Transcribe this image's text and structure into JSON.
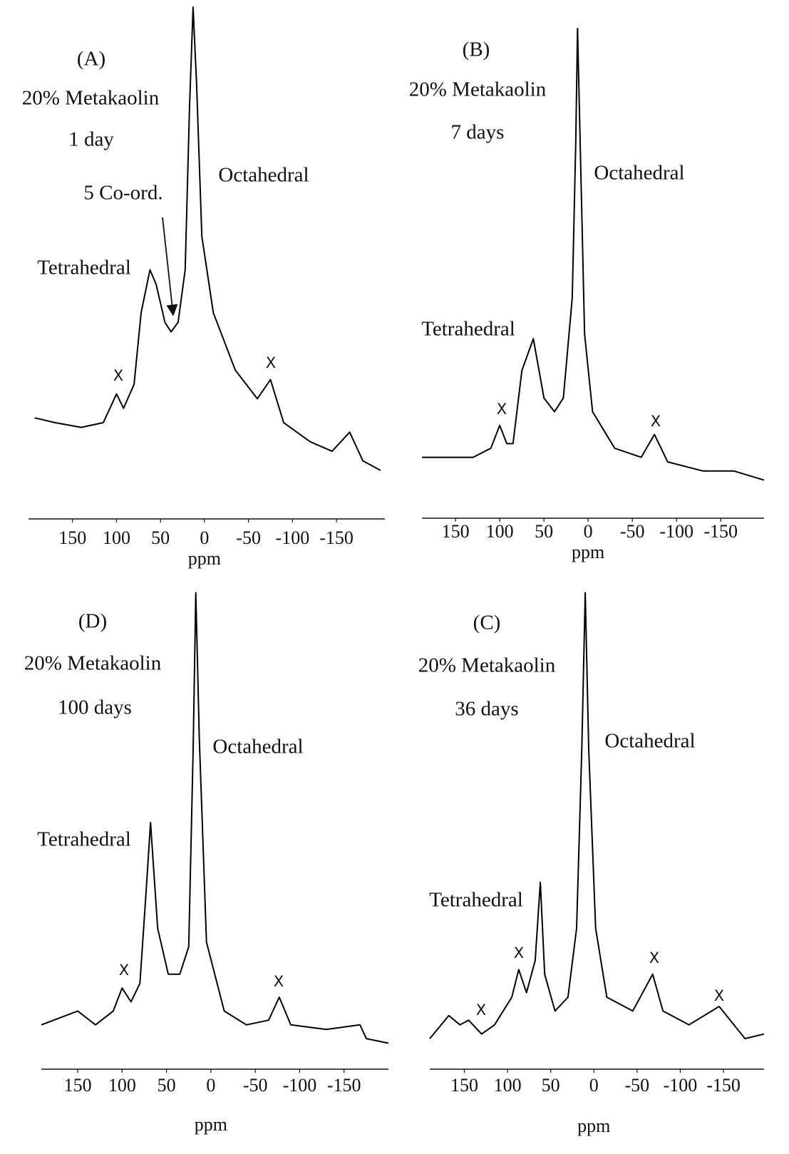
{
  "chart_data": [
    {
      "type": "line",
      "title": "(A)",
      "x_label": "ppm",
      "color": "#000000",
      "annotations": [
        "20% Metakaolin",
        "1 day",
        "5 Co-ord.",
        "Octahedral",
        "Tetrahedral",
        "X",
        "X"
      ],
      "x": [
        193,
        170,
        140,
        115,
        100,
        92,
        80,
        72,
        62,
        55,
        45,
        38,
        30,
        22,
        17,
        13,
        9,
        3,
        -10,
        -35,
        -60,
        -75,
        -90,
        -120,
        -145,
        -165,
        -180,
        -200
      ],
      "values": [
        14,
        13,
        12,
        13,
        19,
        16,
        21,
        36,
        45,
        42,
        34,
        32,
        34,
        45,
        79,
        100,
        84,
        52,
        36,
        24,
        18,
        22,
        13,
        9,
        7,
        11,
        5,
        3
      ],
      "xlim": [
        200,
        -205
      ],
      "ylim": [
        0,
        100
      ],
      "xticks": [
        150,
        100,
        50,
        0,
        -50,
        -100,
        -150
      ]
    },
    {
      "type": "line",
      "title": "(B)",
      "x_label": "ppm",
      "color": "#000000",
      "annotations": [
        "20% Metakaolin",
        "7 days",
        "Octahedral",
        "Tetrahedral",
        "X",
        "X"
      ],
      "x": [
        188,
        160,
        130,
        110,
        100,
        92,
        85,
        75,
        62,
        50,
        38,
        28,
        18,
        14,
        12,
        9,
        4,
        -5,
        -30,
        -60,
        -75,
        -90,
        -130,
        -165,
        -199
      ],
      "values": [
        6,
        6,
        6,
        8,
        13,
        9,
        9,
        25,
        32,
        19,
        16,
        19,
        41,
        75,
        100,
        75,
        33,
        16,
        8,
        6,
        11,
        5,
        3,
        3,
        1
      ],
      "xlim": [
        188,
        -199
      ],
      "ylim": [
        0,
        100
      ],
      "xticks": [
        150,
        100,
        50,
        0,
        -50,
        -100,
        -150
      ]
    },
    {
      "type": "line",
      "title": "(D)",
      "x_label": "ppm",
      "color": "#000000",
      "annotations": [
        "20% Metakaolin",
        "100 days",
        "Octahedral",
        "Tetrahedral",
        "X",
        "X"
      ],
      "x": [
        191,
        150,
        130,
        110,
        100,
        90,
        80,
        73,
        68,
        60,
        48,
        35,
        25,
        20,
        17,
        13,
        5,
        -15,
        -40,
        -65,
        -77,
        -90,
        -130,
        -168,
        -175,
        -200
      ],
      "values": [
        5,
        8,
        5,
        8,
        13,
        10,
        14,
        34,
        49,
        26,
        16,
        16,
        22,
        65,
        99,
        67,
        23,
        8,
        5,
        6,
        11,
        5,
        4,
        5,
        2,
        1
      ],
      "xlim": [
        191,
        -200
      ],
      "ylim": [
        0,
        100
      ],
      "xticks": [
        150,
        100,
        50,
        0,
        -50,
        -100,
        -150
      ]
    },
    {
      "type": "line",
      "title": "(C)",
      "x_label": "ppm",
      "color": "#000000",
      "annotations": [
        "20% Metakaolin",
        "36 days",
        "Octahedral",
        "Tetrahedral",
        "X",
        "X",
        "X",
        "X"
      ],
      "x": [
        190,
        168,
        155,
        145,
        130,
        115,
        95,
        87,
        78,
        68,
        62,
        57,
        45,
        30,
        20,
        14,
        10,
        6,
        -2,
        -15,
        -45,
        -68,
        -80,
        -110,
        -145,
        -175,
        -197
      ],
      "values": [
        2,
        7,
        5,
        6,
        3,
        5,
        11,
        17,
        12,
        19,
        36,
        16,
        8,
        11,
        26,
        65,
        99,
        65,
        26,
        11,
        8,
        16,
        8,
        5,
        9,
        2,
        3
      ],
      "xlim": [
        190,
        -197
      ],
      "ylim": [
        0,
        100
      ],
      "xticks": [
        150,
        100,
        50,
        0,
        -50,
        -100,
        -150
      ]
    }
  ]
}
